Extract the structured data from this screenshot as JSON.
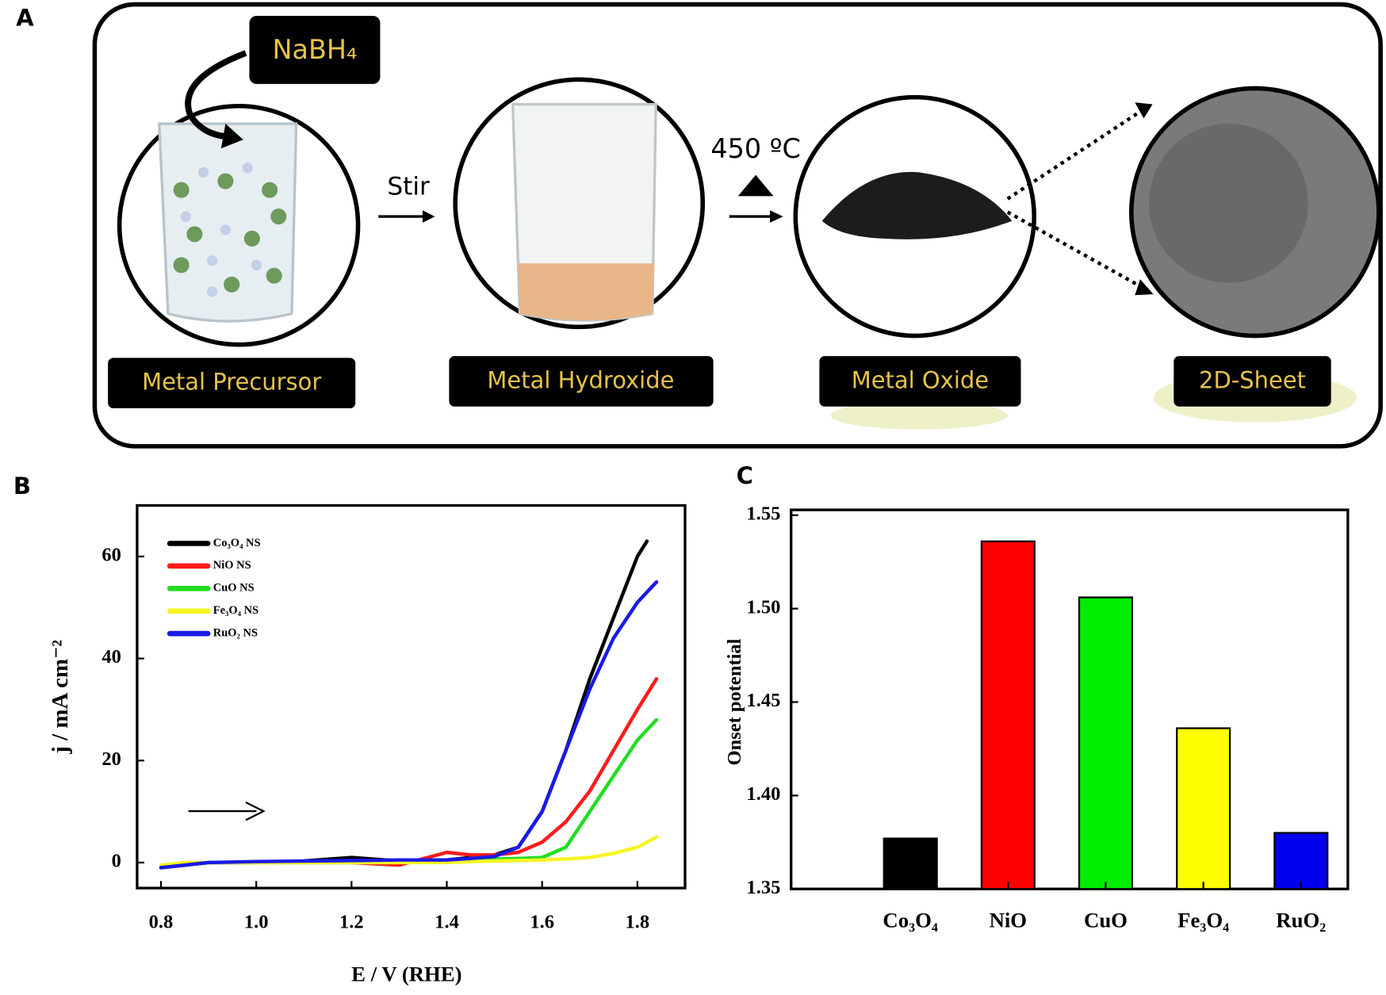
{
  "schematic": {
    "panel": "A",
    "reagent": "NaBH₄",
    "steps": [
      "Stir",
      "450 ºC"
    ],
    "stages": [
      "Metal Precursor",
      "Metal Hydroxide",
      "Metal Oxide",
      "2D-Sheet"
    ]
  },
  "chart_data": [
    {
      "type": "line",
      "panel": "B",
      "xlabel": "E / V (RHE)",
      "ylabel": "j / mA cm⁻²",
      "x": [
        0.8,
        0.85,
        0.9,
        1.0,
        1.1,
        1.2,
        1.3,
        1.4,
        1.45,
        1.5,
        1.55,
        1.6,
        1.65,
        1.7,
        1.75,
        1.8,
        1.82,
        1.84
      ],
      "series": [
        {
          "name": "Co₃O₄ NS",
          "color": "#000000",
          "values": [
            -1,
            -0.5,
            0,
            0,
            0.3,
            1,
            0.3,
            0.5,
            1,
            1.5,
            3,
            10,
            22,
            36,
            48,
            60,
            63,
            null
          ]
        },
        {
          "name": "NiO NS",
          "color": "#ff1a1a",
          "values": [
            -1,
            -0.5,
            0,
            0,
            0,
            0,
            -0.5,
            2,
            1.5,
            1.5,
            2,
            4,
            8,
            14,
            22,
            30,
            33,
            36
          ]
        },
        {
          "name": "CuO NS",
          "color": "#22dd22",
          "values": [
            -1,
            -0.5,
            0,
            0,
            0,
            0,
            0,
            0.2,
            0.5,
            0.7,
            0.8,
            1,
            3,
            10,
            17,
            24,
            26,
            28
          ]
        },
        {
          "name": "Fe₃O₄ NS",
          "color": "#f5f522",
          "values": [
            -0.5,
            0,
            0,
            0,
            0,
            0,
            0,
            0,
            0.2,
            0.3,
            0.4,
            0.5,
            0.7,
            1,
            1.8,
            3,
            4,
            5
          ]
        },
        {
          "name": "RuO₂ NS",
          "color": "#1a1ae6",
          "values": [
            -1,
            -0.5,
            0,
            0.2,
            0.3,
            0.4,
            0.5,
            0.5,
            0.8,
            1.2,
            3,
            10,
            22,
            34,
            44,
            51,
            53,
            55
          ]
        }
      ],
      "xlim": [
        0.75,
        1.9
      ],
      "xticks": [
        0.8,
        {
          "value": 1,
          "label": "1.0"
        },
        1.2,
        1.4,
        1.6,
        1.8
      ],
      "ylim": [
        -5,
        70
      ],
      "yticks": [
        0,
        20,
        40,
        60
      ],
      "legend": "upper left"
    },
    {
      "type": "bar",
      "panel": "C",
      "ylabel": "Onset potential",
      "categories": [
        "Co₃O₄",
        "NiO",
        "CuO",
        "Fe₃O₄",
        "RuO₂"
      ],
      "values": [
        1.377,
        1.536,
        1.506,
        1.436,
        1.38
      ],
      "colors": [
        "#000000",
        "#ff0000",
        "#00ee00",
        "#ffff00",
        "#0000ee"
      ],
      "ylim": [
        1.35,
        1.55
      ],
      "yticks": [
        1.35,
        {
          "value": 1.4,
          "label": "1.40"
        },
        1.45,
        {
          "value": 1.5,
          "label": "1.50"
        },
        1.55
      ]
    }
  ]
}
